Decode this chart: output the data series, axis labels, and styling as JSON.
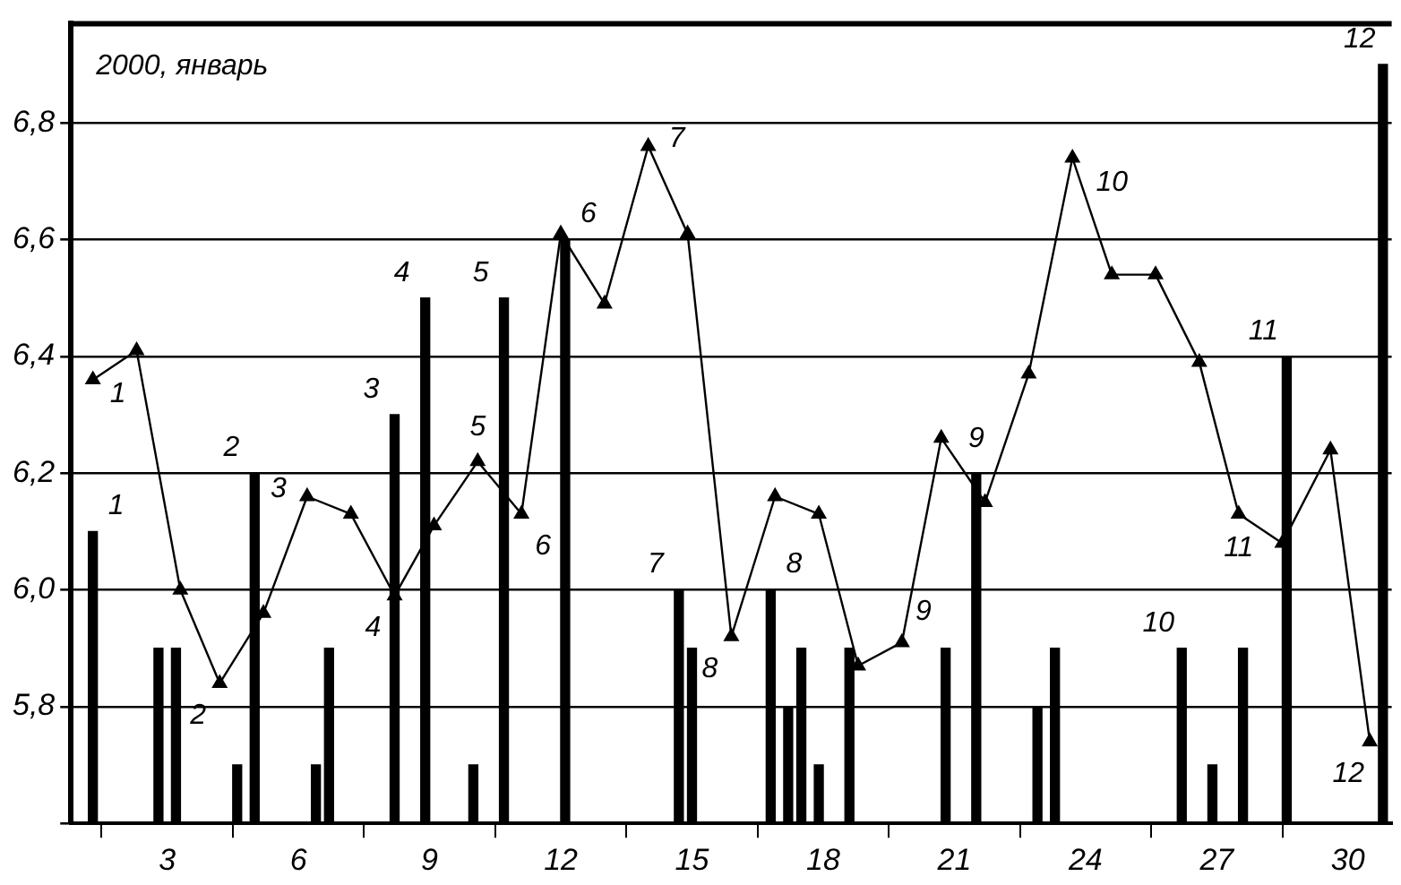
{
  "chart_data": {
    "type": "bar",
    "annotations": [
      "2000, январь",
      {
        "text": "1",
        "x": 1.3,
        "y": 6.36
      },
      {
        "text": "2",
        "x": 4.2,
        "y": 5.84
      },
      {
        "text": "3",
        "x": 6.2,
        "y": 6.16
      },
      {
        "text": "4",
        "x": 8.2,
        "y": 5.99
      },
      {
        "text": "5",
        "x": 10.1,
        "y": 6.22
      },
      {
        "text": "6",
        "x": 11.1,
        "y": 6.13
      },
      {
        "text": "7",
        "x": 14,
        "y": 6.76
      },
      {
        "text": "8",
        "x": 15.9,
        "y": 5.92
      },
      {
        "text": "9",
        "x": 19.8,
        "y": 5.91
      },
      {
        "text": "10",
        "x": 23.7,
        "y": 6.74
      },
      {
        "text": "11",
        "x": 27.5,
        "y": 6.13
      },
      {
        "text": "12",
        "x": 30.5,
        "y": 5.74
      },
      {
        "text": "1",
        "x": 1.3,
        "y": 6.1
      },
      {
        "text": "2",
        "x": 5,
        "y": 6.2
      },
      {
        "text": "3",
        "x": 8.2,
        "y": 6.3
      },
      {
        "text": "4",
        "x": 8.9,
        "y": 6.5
      },
      {
        "text": "5",
        "x": 10.7,
        "y": 6.5
      },
      {
        "text": "6",
        "x": 12.1,
        "y": 6.6
      },
      {
        "text": "7",
        "x": 14.7,
        "y": 6.0
      },
      {
        "text": "8",
        "x": 16.8,
        "y": 6.0
      },
      {
        "text": "9",
        "x": 21.5,
        "y": 6.2
      },
      {
        "text": "10",
        "x": 26.2,
        "y": 5.9
      },
      {
        "text": "11",
        "x": 28.6,
        "y": 6.4
      },
      {
        "text": "12",
        "x": 30.8,
        "y": 6.9
      }
    ],
    "series": [
      {
        "color": "#000000",
        "x": [
          1.3,
          2.8,
          3.2,
          4.6,
          5,
          6.4,
          6.7,
          8.2,
          8.9,
          10,
          10.7,
          12.1,
          14.7,
          15,
          16.8,
          17.2,
          17.5,
          17.9,
          18.6,
          20.8,
          21.5,
          22.9,
          23.3,
          26.2,
          26.9,
          27.6,
          28.6,
          30.8
        ],
        "values": [
          6.1,
          5.9,
          5.9,
          5.7,
          6.2,
          5.7,
          5.9,
          6.3,
          6.5,
          5.7,
          6.5,
          6.6,
          6.0,
          5.9,
          6.0,
          5.8,
          5.9,
          5.7,
          5.9,
          5.9,
          6.2,
          5.8,
          5.9,
          5.9,
          5.7,
          5.9,
          6.4,
          6.9
        ]
      },
      {
        "type": "line",
        "color": "#000000",
        "marker": "triangle",
        "x": [
          1.3,
          2.3,
          3.3,
          4.2,
          5.2,
          6.2,
          7.2,
          8.2,
          9.1,
          10.1,
          11.1,
          12,
          13,
          14,
          14.9,
          15.9,
          16.9,
          17.9,
          18.8,
          19.8,
          20.7,
          21.7,
          22.7,
          23.7,
          24.6,
          25.6,
          26.6,
          27.5,
          28.5,
          29.6,
          30.5
        ],
        "values": [
          6.36,
          6.41,
          6.0,
          5.84,
          5.96,
          6.16,
          6.13,
          5.99,
          6.11,
          6.22,
          6.13,
          6.61,
          6.49,
          6.76,
          6.61,
          5.92,
          6.16,
          6.13,
          5.87,
          5.91,
          6.26,
          6.15,
          6.37,
          6.74,
          6.54,
          6.54,
          6.39,
          6.13,
          6.08,
          6.24,
          5.74
        ]
      }
    ],
    "xlim": [
      0.8,
      31
    ],
    "xticks": [
      3,
      6,
      9,
      12,
      15,
      18,
      21,
      24,
      27,
      30
    ],
    "ylim": [
      5.6,
      6.97
    ],
    "yticks": [
      {
        "value": 5.6,
        "label": null
      },
      {
        "value": 5.8,
        "label": "5,8"
      },
      {
        "value": 6.0,
        "label": "6,0"
      },
      {
        "value": 6.2,
        "label": "6,2"
      },
      {
        "value": 6.4,
        "label": "6,4"
      },
      {
        "value": 6.6,
        "label": "6,6"
      },
      {
        "value": 6.8,
        "label": "6,8"
      }
    ],
    "grid": "y",
    "legend": false
  }
}
